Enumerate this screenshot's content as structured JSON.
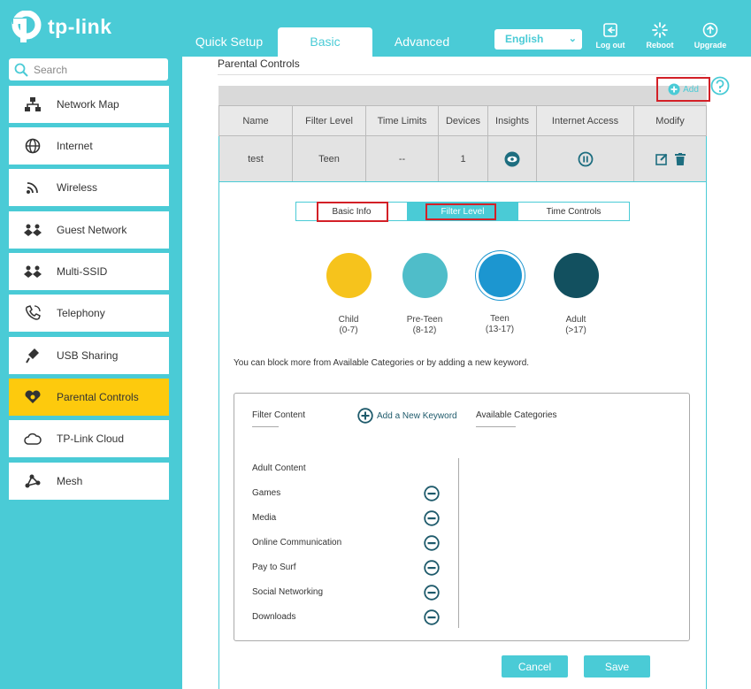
{
  "brand": {
    "logo_text": "tp-link"
  },
  "top_tabs": [
    {
      "label": "Quick Setup"
    },
    {
      "label": "Basic"
    },
    {
      "label": "Advanced"
    }
  ],
  "language": {
    "selected": "English"
  },
  "header_buttons": [
    {
      "label": "Log out",
      "icon": "logout-icon"
    },
    {
      "label": "Reboot",
      "icon": "reboot-icon"
    },
    {
      "label": "Upgrade",
      "icon": "upgrade-icon"
    }
  ],
  "sidebar": {
    "search_placeholder": "Search",
    "items": [
      {
        "label": "Network Map",
        "icon": "network-map-icon"
      },
      {
        "label": "Internet",
        "icon": "globe-icon"
      },
      {
        "label": "Wireless",
        "icon": "wifi-icon"
      },
      {
        "label": "Guest Network",
        "icon": "guest-icon"
      },
      {
        "label": "Multi-SSID",
        "icon": "multi-ssid-icon"
      },
      {
        "label": "Telephony",
        "icon": "phone-icon"
      },
      {
        "label": "USB Sharing",
        "icon": "usb-icon"
      },
      {
        "label": "Parental Controls",
        "icon": "heart-icon",
        "active": true
      },
      {
        "label": "TP-Link Cloud",
        "icon": "cloud-icon"
      },
      {
        "label": "Mesh",
        "icon": "mesh-icon"
      }
    ]
  },
  "main": {
    "title": "Parental Controls",
    "add_label": "Add",
    "table": {
      "headers": [
        "Name",
        "Filter Level",
        "Time Limits",
        "Devices",
        "Insights",
        "Internet Access",
        "Modify"
      ],
      "row": {
        "name": "test",
        "filter_level": "Teen",
        "time_limits": "--",
        "devices": "1"
      }
    },
    "tabs": [
      {
        "label": "Basic Info"
      },
      {
        "label": "Filter Level",
        "active": true
      },
      {
        "label": "Time Controls"
      }
    ],
    "levels": [
      {
        "name": "Child",
        "range": "(0-7)",
        "color": "#f6c31c"
      },
      {
        "name": "Pre-Teen",
        "range": "(8-12)",
        "color": "#4fbdc9"
      },
      {
        "name": "Teen",
        "range": "(13-17)",
        "color": "#1c96d0",
        "selected": true
      },
      {
        "name": "Adult",
        "range": "(>17)",
        "color": "#12505f"
      }
    ],
    "note": "You can block more from Available Categories or by adding a new keyword.",
    "filter_content_label": "Filter Content",
    "add_keyword_label": "Add a New Keyword",
    "available_categories_label": "Available Categories",
    "filter_items": [
      {
        "label": "Adult Content",
        "removable": false
      },
      {
        "label": "Games",
        "removable": true
      },
      {
        "label": "Media",
        "removable": true
      },
      {
        "label": "Online Communication",
        "removable": true
      },
      {
        "label": "Pay to Surf",
        "removable": true
      },
      {
        "label": "Social Networking",
        "removable": true
      },
      {
        "label": "Downloads",
        "removable": true
      }
    ],
    "cancel_label": "Cancel",
    "save_label": "Save"
  },
  "colors": {
    "accent": "#4acbd6",
    "active_nav": "#fdca0d",
    "highlight": "#d32027"
  }
}
